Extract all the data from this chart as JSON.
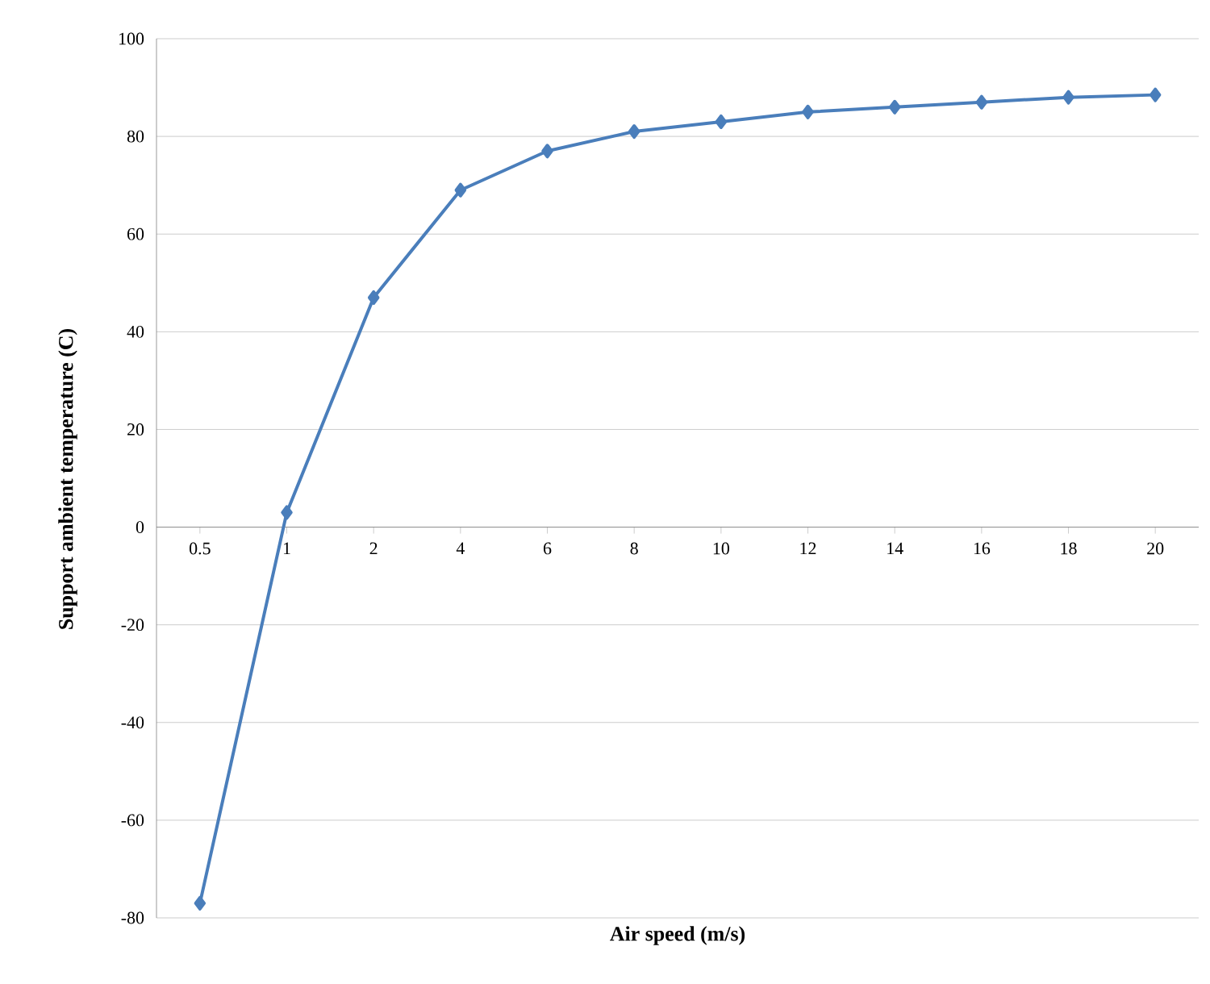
{
  "chart_data": {
    "type": "line",
    "xlabel": "Air speed (m/s)",
    "ylabel": "Support ambient temperature (C)",
    "categories": [
      "0.5",
      "1",
      "2",
      "4",
      "6",
      "8",
      "10",
      "12",
      "14",
      "16",
      "18",
      "20"
    ],
    "series": [
      {
        "color": "#4a7ebb",
        "values": [
          -77,
          3,
          47,
          69,
          77,
          81,
          83,
          85,
          86,
          87,
          88,
          88.5
        ]
      }
    ],
    "ylim": [
      -80,
      100
    ],
    "yticks": [
      -80,
      -60,
      -40,
      -20,
      0,
      20,
      40,
      60,
      80,
      100
    ],
    "grid": "y",
    "marker": "diamond",
    "line_style": "solid"
  }
}
